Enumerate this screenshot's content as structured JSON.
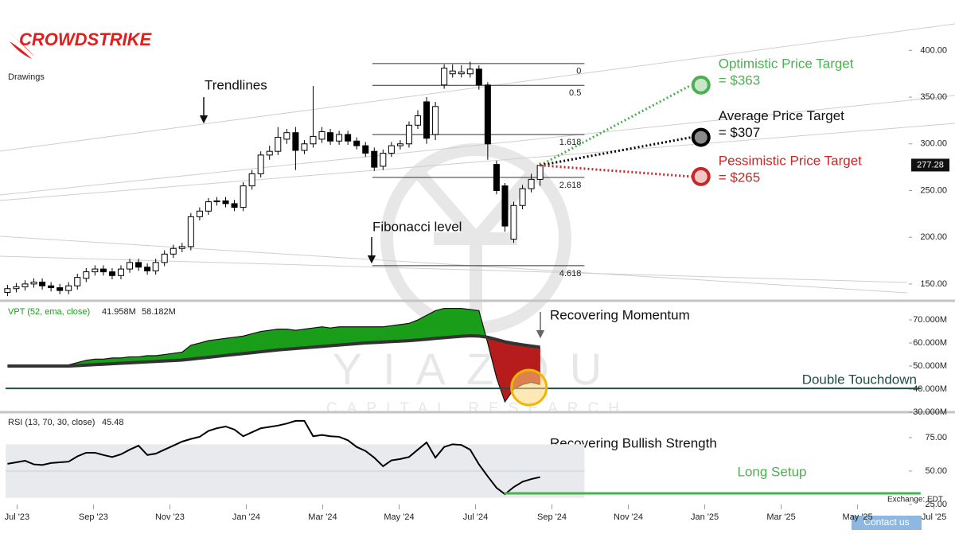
{
  "logo": "CROWDSTRIKE",
  "drawings_label": "Drawings",
  "watermark": {
    "name": "YIAZOU",
    "subtitle": "CAPITAL RESEARCH"
  },
  "exchange": "Exchange: EDT",
  "contact": "Contact us",
  "chart_data": [
    {
      "type": "candlestick",
      "up_color": "#ffffff",
      "down_color": "#000000",
      "x": [
        -0.25,
        -0.02,
        0.21,
        0.44,
        0.66,
        0.89,
        1.12,
        1.35,
        1.58,
        1.81,
        2.04,
        2.26,
        2.49,
        2.72,
        2.95,
        3.18,
        3.41,
        3.63,
        3.86,
        4.09,
        4.32,
        4.55,
        4.78,
        5.01,
        5.23,
        5.46,
        5.69,
        5.92,
        6.15,
        6.38,
        6.61,
        6.83,
        7.06,
        7.29,
        7.52,
        7.75,
        7.98,
        8.2,
        8.43,
        8.66,
        8.89,
        9.12,
        9.35,
        9.58,
        9.8,
        10.03,
        10.26,
        10.49,
        10.72,
        10.95,
        11.18,
        11.4,
        11.63,
        11.86,
        12.09,
        12.32,
        12.55,
        12.77,
        13.0,
        13.23,
        13.46,
        13.69
      ],
      "open": [
        141,
        145,
        147,
        150,
        152,
        148,
        146,
        143,
        148,
        156,
        163,
        166,
        163,
        159,
        166,
        173,
        168,
        164,
        173,
        182,
        188,
        190,
        222,
        228,
        238,
        239,
        236,
        232,
        255,
        268,
        288,
        292,
        305,
        312,
        293,
        300,
        305,
        312,
        303,
        310,
        303,
        298,
        292,
        276,
        290,
        298,
        300,
        320,
        345,
        310,
        363,
        375,
        375,
        375,
        380,
        363,
        278,
        255,
        198,
        234,
        252,
        262
      ],
      "high": [
        149,
        151,
        154,
        156,
        156,
        152,
        150,
        152,
        161,
        167,
        170,
        170,
        167,
        170,
        177,
        177,
        172,
        177,
        186,
        192,
        194,
        226,
        232,
        242,
        243,
        243,
        240,
        259,
        272,
        292,
        298,
        318,
        316,
        318,
        304,
        362,
        318,
        316,
        314,
        314,
        307,
        302,
        296,
        294,
        302,
        304,
        324,
        336,
        350,
        345,
        385,
        385,
        384,
        388,
        384,
        366,
        282,
        258,
        238,
        256,
        268,
        280
      ],
      "low": [
        137,
        141,
        143,
        146,
        144,
        142,
        139,
        139,
        144,
        152,
        159,
        159,
        155,
        155,
        162,
        164,
        160,
        160,
        169,
        178,
        184,
        186,
        218,
        224,
        234,
        232,
        228,
        228,
        251,
        264,
        283,
        288,
        300,
        272,
        289,
        296,
        301,
        299,
        299,
        299,
        294,
        286,
        271,
        272,
        286,
        294,
        296,
        316,
        300,
        304,
        359,
        371,
        371,
        371,
        358,
        283,
        246,
        206,
        194,
        230,
        248,
        255
      ],
      "close": [
        145,
        147,
        150,
        152,
        148,
        146,
        143,
        148,
        157,
        163,
        166,
        163,
        159,
        166,
        173,
        168,
        164,
        173,
        182,
        188,
        190,
        222,
        228,
        238,
        239,
        236,
        232,
        255,
        268,
        288,
        292,
        307,
        312,
        293,
        300,
        308,
        313,
        303,
        310,
        303,
        298,
        290,
        275,
        290,
        298,
        300,
        320,
        330,
        306,
        340,
        381,
        378,
        377,
        380,
        363,
        300,
        250,
        212,
        234,
        252,
        262,
        277
      ],
      "xlim": [
        -0.3,
        23.3
      ],
      "xticks": [
        {
          "value": 0,
          "label": "Jul '23"
        },
        {
          "value": 2,
          "label": "Sep '23"
        },
        {
          "value": 4,
          "label": "Nov '23"
        },
        {
          "value": 6,
          "label": "Jan '24"
        },
        {
          "value": 8,
          "label": "Mar '24"
        },
        {
          "value": 10,
          "label": "May '24"
        },
        {
          "value": 12,
          "label": "Jul '24"
        },
        {
          "value": 14,
          "label": "Sep '24"
        },
        {
          "value": 16,
          "label": "Nov '24"
        },
        {
          "value": 18,
          "label": "Jan '25"
        },
        {
          "value": 20,
          "label": "Mar '25"
        },
        {
          "value": 22,
          "label": "May '25"
        },
        {
          "value": 24,
          "label": "Jul '25"
        }
      ],
      "ylim": [
        132,
        454
      ],
      "yticks": [
        {
          "value": 150,
          "label": "150.00"
        },
        {
          "value": 200,
          "label": "200.00"
        },
        {
          "value": 250,
          "label": "250.00"
        },
        {
          "value": 300,
          "label": "300.00"
        },
        {
          "value": 350,
          "label": "350.00"
        },
        {
          "value": 400,
          "label": "400.00"
        }
      ],
      "last_price": 277.28,
      "fib": {
        "x": [
          9.3,
          14.85
        ],
        "levels": [
          {
            "label": "0",
            "value": 386
          },
          {
            "label": "0.5",
            "value": 362.6
          },
          {
            "label": "1.618",
            "value": 309.9
          },
          {
            "label": "2.618",
            "value": 264
          },
          {
            "label": "4.618",
            "value": 169.6
          }
        ]
      },
      "target_x": 17.9,
      "targets": [
        {
          "name": "Optimistic Price Target",
          "label": "= $363",
          "value": 363,
          "color": "#4caf50",
          "fill": "#c8e6c9"
        },
        {
          "name": "Average Price Target",
          "label": "= $307",
          "value": 307,
          "color": "#000000",
          "fill": "#8a8a8a"
        },
        {
          "name": "Pessimistic Price Target",
          "label": "= $265",
          "value": 265,
          "color": "#c62828",
          "fill": "#f4c7c7"
        }
      ],
      "annotations": [
        "Trendlines",
        "Fibonacci level"
      ]
    },
    {
      "type": "vpt",
      "title": "VPT (52, ema, close)",
      "readout": [
        {
          "value": 41.958,
          "label": "41.958M"
        },
        {
          "value": 58.182,
          "label": "58.182M"
        }
      ],
      "ylim": [
        30,
        78.3
      ],
      "yticks": [
        {
          "value": 30,
          "label": "30.000M"
        },
        {
          "value": 40,
          "label": "40.000M"
        },
        {
          "value": 50,
          "label": "50.000M"
        },
        {
          "value": 60,
          "label": "60.000M"
        },
        {
          "value": 70,
          "label": "70.000M"
        }
      ],
      "series": [
        {
          "color": "#1a9e1a",
          "values": [
            50,
            50,
            50,
            50,
            50,
            50,
            50,
            50.5,
            51.5,
            52.5,
            53,
            53,
            53.5,
            53.5,
            54,
            54,
            54.5,
            54.5,
            55,
            55.5,
            56,
            59,
            60,
            61,
            61.5,
            62,
            62.5,
            63,
            64,
            65,
            65.5,
            66,
            66,
            65.5,
            66,
            66.5,
            67,
            66.5,
            67,
            67,
            67,
            67,
            67,
            67,
            67.5,
            68,
            68.5,
            70,
            72,
            74,
            75,
            75,
            75,
            74.5,
            74,
            60,
            45,
            34.5,
            40,
            42,
            43,
            41.958
          ]
        },
        {
          "color": "#333333",
          "values": [
            50,
            50,
            50,
            50,
            50,
            50,
            50,
            50,
            50.2,
            50.4,
            50.6,
            50.8,
            51,
            51.2,
            51.4,
            51.6,
            51.8,
            52,
            52.2,
            52.4,
            52.6,
            53,
            53.4,
            53.8,
            54.2,
            54.6,
            55,
            55.4,
            55.8,
            56.2,
            56.6,
            57,
            57.3,
            57.6,
            57.9,
            58.2,
            58.5,
            58.8,
            59.1,
            59.4,
            59.7,
            60,
            60.2,
            60.4,
            60.6,
            60.8,
            61,
            61.3,
            61.6,
            62,
            62.3,
            62.6,
            62.9,
            63.1,
            63,
            62.5,
            61.5,
            60.5,
            59.8,
            59.2,
            58.7,
            58.182
          ]
        }
      ],
      "down_fill": "#b71c1c",
      "level": {
        "value": 40.3,
        "label": "Double Touchdown",
        "color": "#1e4d45"
      },
      "highlight": {
        "x": 13.4,
        "value": 40.7
      },
      "annotation": "Recovering Momentum"
    },
    {
      "type": "rsi",
      "title": "RSI (13, 70, 30, close)",
      "readout": 45.48,
      "color": "#000000",
      "values": [
        55.4,
        56.5,
        57.7,
        55,
        54.5,
        56,
        56.5,
        57,
        61,
        63.7,
        63.7,
        62,
        60.5,
        62.5,
        66,
        69,
        62,
        63,
        66,
        69,
        72,
        74,
        75.6,
        80,
        82,
        83.3,
        81,
        76,
        79,
        82,
        83,
        84,
        85.5,
        87.5,
        87.5,
        76,
        77,
        76,
        75.6,
        73,
        68,
        65,
        60,
        53.6,
        58,
        59,
        60.5,
        66,
        71.4,
        60,
        68,
        70,
        69.5,
        66,
        55,
        46,
        37.5,
        32.7,
        38,
        42,
        44,
        45.48
      ],
      "band": [
        30,
        70
      ],
      "midline": 50,
      "ylim": [
        25,
        94
      ],
      "yticks": [
        {
          "value": 25,
          "label": "25.00"
        },
        {
          "value": 50,
          "label": "50.00"
        },
        {
          "value": 75,
          "label": "75.00"
        }
      ],
      "level": {
        "value": 33.3,
        "x": [
          12.75,
          23.65
        ],
        "label": "Long Setup",
        "color": "#4caf50"
      },
      "annotation": "Recovering Bullish Strength"
    }
  ]
}
